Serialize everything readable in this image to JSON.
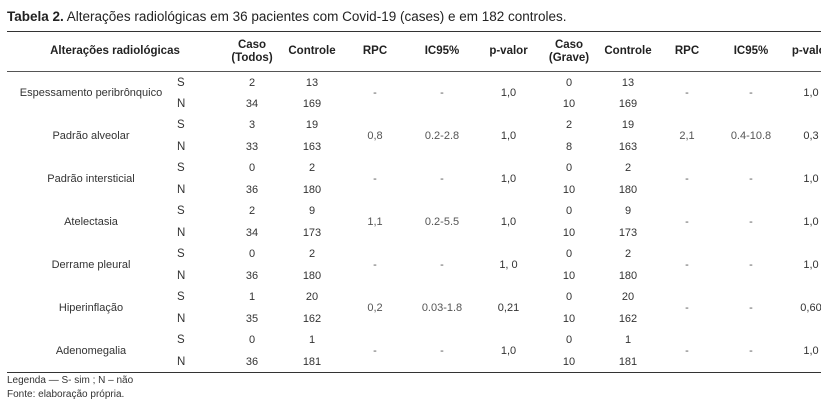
{
  "title": {
    "bold": "Tabela 2.",
    "text": " Alterações radiológicas em 36 pacientes com Covid-19 (cases) e em 182 controles."
  },
  "headers": {
    "alteracoes": "Alterações radiológicas",
    "caso_todos_1": "Caso",
    "caso_todos_2": "(Todos)",
    "controle1": "Controle",
    "rpc1": "RPC",
    "ic1": "IC95%",
    "p1": "p-valor",
    "caso_grave_1": "Caso",
    "caso_grave_2": "(Grave)",
    "controle2": "Controle",
    "rpc2": "RPC",
    "ic2": "IC95%",
    "p2": "p-valor"
  },
  "rows": [
    {
      "name": "Espessamento peribrônquico",
      "s": {
        "label": "S",
        "caso": "2",
        "ctrl": "13",
        "caso2": "0",
        "ctrl2": "13"
      },
      "n": {
        "label": "N",
        "caso": "34",
        "ctrl": "169",
        "caso2": "10",
        "ctrl2": "169"
      },
      "rpc": "-",
      "ic": "-",
      "p": "1,0",
      "rpc2": "-",
      "ic2": "-",
      "p2": "1,0"
    },
    {
      "name": "Padrão alveolar",
      "s": {
        "label": "S",
        "caso": "3",
        "ctrl": "19",
        "caso2": "2",
        "ctrl2": "19"
      },
      "n": {
        "label": "N",
        "caso": "33",
        "ctrl": "163",
        "caso2": "8",
        "ctrl2": "163"
      },
      "rpc": "0,8",
      "ic": "0.2-2.8",
      "p": "1,0",
      "rpc2": "2,1",
      "ic2": "0.4-10.8",
      "p2": "0,3"
    },
    {
      "name": "Padrão intersticial",
      "s": {
        "label": "S",
        "caso": "0",
        "ctrl": "2",
        "caso2": "0",
        "ctrl2": "2"
      },
      "n": {
        "label": "N",
        "caso": "36",
        "ctrl": "180",
        "caso2": "10",
        "ctrl2": "180"
      },
      "rpc": "-",
      "ic": "-",
      "p": "1,0",
      "rpc2": "-",
      "ic2": "-",
      "p2": "1,0"
    },
    {
      "name": "Atelectasia",
      "s": {
        "label": "S",
        "caso": "2",
        "ctrl": "9",
        "caso2": "0",
        "ctrl2": "9"
      },
      "n": {
        "label": "N",
        "caso": "34",
        "ctrl": "173",
        "caso2": "10",
        "ctrl2": "173"
      },
      "rpc": "1,1",
      "ic": "0.2-5.5",
      "p": "1,0",
      "rpc2": "-",
      "ic2": "-",
      "p2": "1,0"
    },
    {
      "name": "Derrame pleural",
      "s": {
        "label": "S",
        "caso": "0",
        "ctrl": "2",
        "caso2": "0",
        "ctrl2": "2"
      },
      "n": {
        "label": "N",
        "caso": "36",
        "ctrl": "180",
        "caso2": "10",
        "ctrl2": "180"
      },
      "rpc": "-",
      "ic": "-",
      "p": "1, 0",
      "rpc2": "-",
      "ic2": "-",
      "p2": "1,0"
    },
    {
      "name": "Hiperinflação",
      "s": {
        "label": "S",
        "caso": "1",
        "ctrl": "20",
        "caso2": "0",
        "ctrl2": "20"
      },
      "n": {
        "label": "N",
        "caso": "35",
        "ctrl": "162",
        "caso2": "10",
        "ctrl2": "162"
      },
      "rpc": "0,2",
      "ic": "0.03-1.8",
      "p": "0,21",
      "rpc2": "-",
      "ic2": "-",
      "p2": "0,60"
    },
    {
      "name": "Adenomegalia",
      "s": {
        "label": "S",
        "caso": "0",
        "ctrl": "1",
        "caso2": "0",
        "ctrl2": "1"
      },
      "n": {
        "label": "N",
        "caso": "36",
        "ctrl": "181",
        "caso2": "10",
        "ctrl2": "181"
      },
      "rpc": "-",
      "ic": "-",
      "p": "1,0",
      "rpc2": "-",
      "ic2": "-",
      "p2": "1,0"
    }
  ],
  "legend": {
    "line1": "Legenda — S- sim ; N – não",
    "line2": "Fonte: elaboração própria."
  }
}
